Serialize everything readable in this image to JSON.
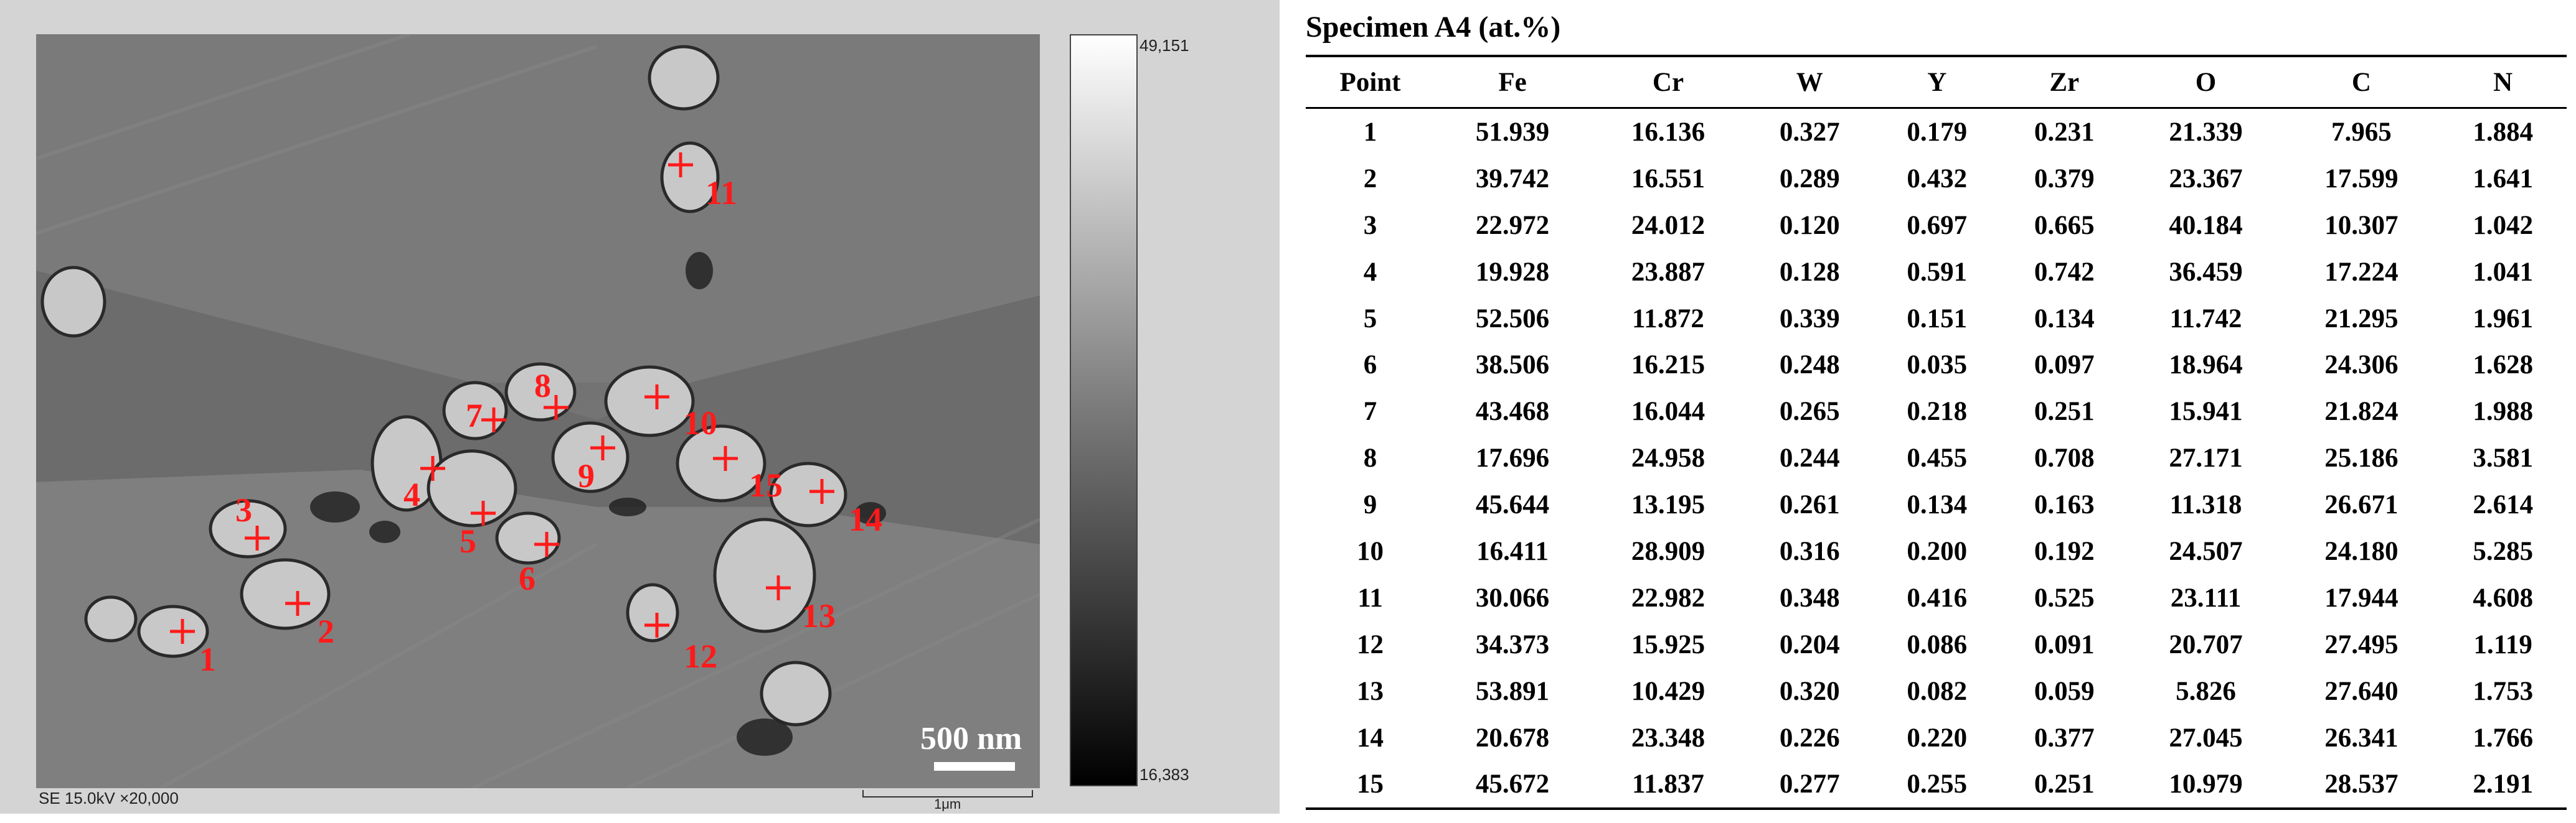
{
  "sem": {
    "footer_left": "SE 15.0kV ×20,000",
    "footer_scale": "1μm",
    "scale_bar_label": "500 nm",
    "colorbar_max": "49,151",
    "colorbar_min": "16,383",
    "marker_color": "#ff1a1a",
    "points": [
      "1",
      "2",
      "3",
      "4",
      "5",
      "6",
      "7",
      "8",
      "9",
      "10",
      "11",
      "12",
      "13",
      "14",
      "15"
    ]
  },
  "table": {
    "title": "Specimen A4 (at.%)",
    "headers": [
      "Point",
      "Fe",
      "Cr",
      "W",
      "Y",
      "Zr",
      "O",
      "C",
      "N"
    ],
    "rows": [
      [
        "1",
        "51.939",
        "16.136",
        "0.327",
        "0.179",
        "0.231",
        "21.339",
        "7.965",
        "1.884"
      ],
      [
        "2",
        "39.742",
        "16.551",
        "0.289",
        "0.432",
        "0.379",
        "23.367",
        "17.599",
        "1.641"
      ],
      [
        "3",
        "22.972",
        "24.012",
        "0.120",
        "0.697",
        "0.665",
        "40.184",
        "10.307",
        "1.042"
      ],
      [
        "4",
        "19.928",
        "23.887",
        "0.128",
        "0.591",
        "0.742",
        "36.459",
        "17.224",
        "1.041"
      ],
      [
        "5",
        "52.506",
        "11.872",
        "0.339",
        "0.151",
        "0.134",
        "11.742",
        "21.295",
        "1.961"
      ],
      [
        "6",
        "38.506",
        "16.215",
        "0.248",
        "0.035",
        "0.097",
        "18.964",
        "24.306",
        "1.628"
      ],
      [
        "7",
        "43.468",
        "16.044",
        "0.265",
        "0.218",
        "0.251",
        "15.941",
        "21.824",
        "1.988"
      ],
      [
        "8",
        "17.696",
        "24.958",
        "0.244",
        "0.455",
        "0.708",
        "27.171",
        "25.186",
        "3.581"
      ],
      [
        "9",
        "45.644",
        "13.195",
        "0.261",
        "0.134",
        "0.163",
        "11.318",
        "26.671",
        "2.614"
      ],
      [
        "10",
        "16.411",
        "28.909",
        "0.316",
        "0.200",
        "0.192",
        "24.507",
        "24.180",
        "5.285"
      ],
      [
        "11",
        "30.066",
        "22.982",
        "0.348",
        "0.416",
        "0.525",
        "23.111",
        "17.944",
        "4.608"
      ],
      [
        "12",
        "34.373",
        "15.925",
        "0.204",
        "0.086",
        "0.091",
        "20.707",
        "27.495",
        "1.119"
      ],
      [
        "13",
        "53.891",
        "10.429",
        "0.320",
        "0.082",
        "0.059",
        "5.826",
        "27.640",
        "1.753"
      ],
      [
        "14",
        "20.678",
        "23.348",
        "0.226",
        "0.220",
        "0.377",
        "27.045",
        "26.341",
        "1.766"
      ],
      [
        "15",
        "45.672",
        "11.837",
        "0.277",
        "0.255",
        "0.251",
        "10.979",
        "28.537",
        "2.191"
      ]
    ]
  }
}
